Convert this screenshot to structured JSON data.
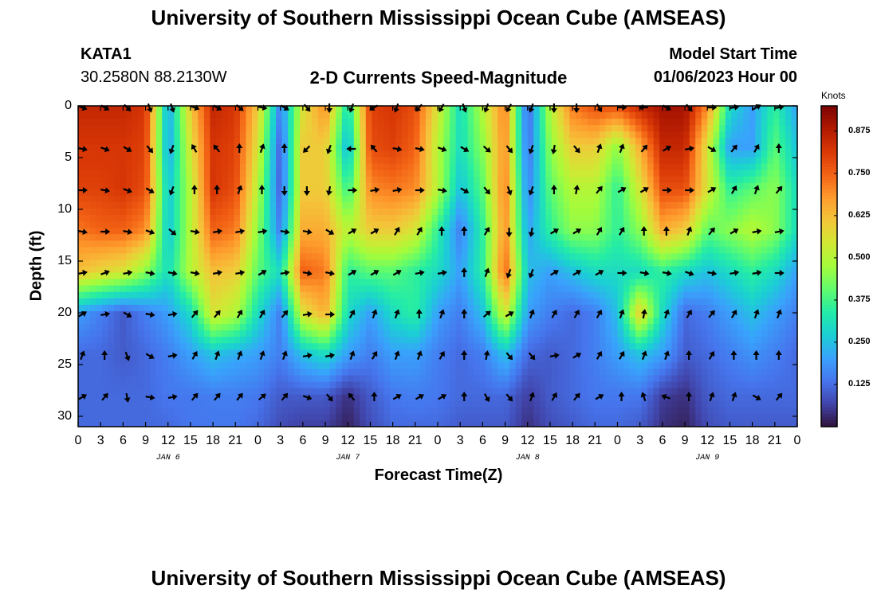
{
  "header": {
    "title_top": "University of Southern Mississippi Ocean Cube (AMSEAS)",
    "title_bottom": "University of Southern Mississippi Ocean Cube (AMSEAS)",
    "station": "KATA1",
    "coords": "30.2580N  88.2130W",
    "plot_title": "2-D Currents Speed-Magnitude",
    "model_label": "Model Start Time",
    "model_time": "01/06/2023 Hour 00"
  },
  "chart_data": {
    "type": "heatmap",
    "title": "2-D Currents Speed-Magnitude",
    "xlabel": "Forecast Time(Z)",
    "ylabel": "Depth (ft)",
    "x_ticks": [
      "0",
      "3",
      "6",
      "9",
      "12",
      "15",
      "18",
      "21",
      "0",
      "3",
      "6",
      "9",
      "12",
      "15",
      "18",
      "21",
      "0",
      "3",
      "6",
      "9",
      "12",
      "15",
      "18",
      "21",
      "0",
      "3",
      "6",
      "9",
      "12",
      "15",
      "18",
      "21",
      "0"
    ],
    "x_range_hours": [
      0,
      96
    ],
    "day_labels": [
      "JAN 6",
      "JAN 7",
      "JAN 8",
      "JAN 9"
    ],
    "y_ticks": [
      "0",
      "5",
      "10",
      "15",
      "20",
      "25",
      "30"
    ],
    "y_range_ft": [
      0,
      31
    ],
    "colorbar": {
      "unit": "Knots",
      "range": [
        0,
        0.95
      ],
      "ticks": [
        "0.875",
        "0.750",
        "0.625",
        "0.500",
        "0.375",
        "0.250",
        "0.125"
      ],
      "tick_values": [
        0.875,
        0.75,
        0.625,
        0.5,
        0.375,
        0.25,
        0.125
      ],
      "colors": [
        "#30123b",
        "#4145ab",
        "#4675ed",
        "#39a2fc",
        "#1bcfd4",
        "#24eca6",
        "#61fc6c",
        "#a4fc3b",
        "#d1e834",
        "#f3c63a",
        "#fe9b2d",
        "#f36315",
        "#d93806",
        "#b11901",
        "#7a0403"
      ]
    },
    "speed_depths_ft": [
      0,
      4,
      8,
      12,
      16,
      20,
      24,
      28,
      31
    ],
    "speed_hours": [
      0,
      3,
      6,
      9,
      12,
      15,
      18,
      21,
      24,
      27,
      30,
      33,
      36,
      39,
      42,
      45,
      48,
      51,
      54,
      57,
      60,
      63,
      66,
      69,
      72,
      75,
      78,
      81,
      84,
      87,
      90,
      93,
      96
    ],
    "speed_knots": [
      [
        0.85,
        0.85,
        0.85,
        0.82,
        0.2,
        0.6,
        0.85,
        0.82,
        0.6,
        0.15,
        0.55,
        0.7,
        0.3,
        0.8,
        0.82,
        0.78,
        0.55,
        0.3,
        0.5,
        0.72,
        0.1,
        0.5,
        0.72,
        0.78,
        0.78,
        0.85,
        0.9,
        0.9,
        0.7,
        0.3,
        0.2,
        0.35,
        0.2
      ],
      [
        0.82,
        0.82,
        0.82,
        0.8,
        0.2,
        0.55,
        0.82,
        0.8,
        0.55,
        0.1,
        0.6,
        0.6,
        0.22,
        0.78,
        0.8,
        0.75,
        0.5,
        0.3,
        0.45,
        0.7,
        0.12,
        0.45,
        0.6,
        0.6,
        0.45,
        0.65,
        0.85,
        0.85,
        0.55,
        0.2,
        0.2,
        0.4,
        0.25
      ],
      [
        0.8,
        0.8,
        0.82,
        0.78,
        0.25,
        0.5,
        0.82,
        0.78,
        0.5,
        0.1,
        0.6,
        0.6,
        0.35,
        0.7,
        0.72,
        0.7,
        0.5,
        0.25,
        0.4,
        0.72,
        0.15,
        0.4,
        0.5,
        0.5,
        0.35,
        0.55,
        0.78,
        0.78,
        0.55,
        0.35,
        0.4,
        0.45,
        0.3
      ],
      [
        0.72,
        0.75,
        0.75,
        0.7,
        0.25,
        0.5,
        0.75,
        0.72,
        0.45,
        0.15,
        0.65,
        0.65,
        0.5,
        0.6,
        0.6,
        0.55,
        0.35,
        0.15,
        0.35,
        0.7,
        0.2,
        0.35,
        0.45,
        0.45,
        0.35,
        0.45,
        0.65,
        0.6,
        0.4,
        0.45,
        0.5,
        0.45,
        0.3
      ],
      [
        0.62,
        0.58,
        0.55,
        0.45,
        0.3,
        0.5,
        0.62,
        0.6,
        0.4,
        0.3,
        0.75,
        0.72,
        0.35,
        0.4,
        0.4,
        0.35,
        0.3,
        0.2,
        0.35,
        0.75,
        0.25,
        0.2,
        0.25,
        0.3,
        0.3,
        0.3,
        0.35,
        0.3,
        0.25,
        0.3,
        0.35,
        0.3,
        0.2
      ],
      [
        0.2,
        0.15,
        0.1,
        0.15,
        0.2,
        0.3,
        0.55,
        0.5,
        0.3,
        0.15,
        0.55,
        0.65,
        0.3,
        0.2,
        0.3,
        0.35,
        0.2,
        0.15,
        0.25,
        0.55,
        0.2,
        0.15,
        0.12,
        0.15,
        0.25,
        0.6,
        0.3,
        0.12,
        0.15,
        0.2,
        0.25,
        0.2,
        0.15
      ],
      [
        0.12,
        0.12,
        0.1,
        0.12,
        0.15,
        0.2,
        0.25,
        0.22,
        0.2,
        0.15,
        0.25,
        0.3,
        0.2,
        0.15,
        0.2,
        0.2,
        0.15,
        0.12,
        0.15,
        0.25,
        0.12,
        0.1,
        0.12,
        0.15,
        0.2,
        0.25,
        0.2,
        0.1,
        0.12,
        0.15,
        0.18,
        0.15,
        0.12
      ],
      [
        0.12,
        0.12,
        0.12,
        0.12,
        0.14,
        0.14,
        0.15,
        0.15,
        0.14,
        0.1,
        0.1,
        0.1,
        0.04,
        0.1,
        0.14,
        0.15,
        0.14,
        0.12,
        0.12,
        0.12,
        0.06,
        0.1,
        0.12,
        0.14,
        0.14,
        0.14,
        0.06,
        0.04,
        0.1,
        0.12,
        0.12,
        0.12,
        0.12
      ],
      [
        0.12,
        0.12,
        0.12,
        0.12,
        0.12,
        0.14,
        0.14,
        0.14,
        0.12,
        0.08,
        0.06,
        0.06,
        0.02,
        0.08,
        0.12,
        0.12,
        0.12,
        0.1,
        0.1,
        0.1,
        0.04,
        0.08,
        0.1,
        0.12,
        0.12,
        0.1,
        0.04,
        0.02,
        0.08,
        0.1,
        0.1,
        0.1,
        0.1
      ]
    ],
    "vector_depths_ft": [
      0,
      4,
      8,
      12,
      16,
      20,
      24,
      28
    ],
    "vector_hours": [
      0,
      3,
      6,
      9,
      12,
      15,
      18,
      21,
      24,
      27,
      30,
      33,
      36,
      39,
      42,
      45,
      48,
      51,
      54,
      57,
      60,
      63,
      66,
      69,
      72,
      75,
      78,
      81,
      84,
      87,
      90,
      93
    ],
    "vector_dirs_deg": [
      [
        110,
        120,
        135,
        160,
        160,
        110,
        120,
        130,
        100,
        120,
        140,
        180,
        200,
        240,
        200,
        220,
        210,
        160,
        200,
        210,
        200,
        180,
        180,
        150,
        90,
        270,
        120,
        140,
        90,
        80,
        60,
        80
      ],
      [
        100,
        110,
        120,
        140,
        200,
        330,
        320,
        0,
        20,
        0,
        225,
        200,
        270,
        320,
        100,
        100,
        110,
        120,
        130,
        140,
        200,
        190,
        140,
        20,
        20,
        40,
        60,
        80,
        120,
        40,
        30,
        0
      ],
      [
        90,
        100,
        110,
        120,
        200,
        0,
        0,
        20,
        0,
        180,
        180,
        190,
        90,
        80,
        80,
        90,
        100,
        120,
        140,
        160,
        200,
        0,
        10,
        40,
        60,
        60,
        90,
        90,
        60,
        30,
        20,
        40
      ],
      [
        100,
        90,
        100,
        110,
        130,
        100,
        80,
        80,
        80,
        100,
        100,
        120,
        60,
        60,
        30,
        30,
        0,
        0,
        30,
        180,
        190,
        60,
        60,
        30,
        30,
        0,
        0,
        20,
        40,
        60,
        80,
        80
      ],
      [
        80,
        70,
        80,
        100,
        100,
        100,
        80,
        80,
        60,
        80,
        100,
        100,
        60,
        60,
        60,
        80,
        80,
        0,
        20,
        200,
        200,
        60,
        60,
        60,
        90,
        100,
        100,
        110,
        100,
        80,
        80,
        90
      ],
      [
        60,
        80,
        120,
        100,
        80,
        40,
        40,
        30,
        30,
        40,
        80,
        90,
        30,
        20,
        20,
        0,
        20,
        0,
        50,
        60,
        20,
        30,
        30,
        30,
        20,
        10,
        20,
        30,
        40,
        30,
        20,
        20
      ],
      [
        20,
        0,
        160,
        120,
        80,
        30,
        20,
        20,
        20,
        20,
        80,
        80,
        20,
        30,
        20,
        20,
        30,
        0,
        10,
        140,
        140,
        80,
        60,
        30,
        30,
        20,
        20,
        0,
        30,
        0,
        0,
        0
      ],
      [
        60,
        40,
        170,
        100,
        80,
        40,
        40,
        40,
        50,
        40,
        110,
        140,
        320,
        0,
        60,
        60,
        60,
        0,
        150,
        140,
        20,
        30,
        40,
        60,
        0,
        340,
        290,
        0,
        20,
        20,
        120,
        40
      ]
    ]
  },
  "colors": {
    "frame": "#000000",
    "background": "#ffffff"
  }
}
